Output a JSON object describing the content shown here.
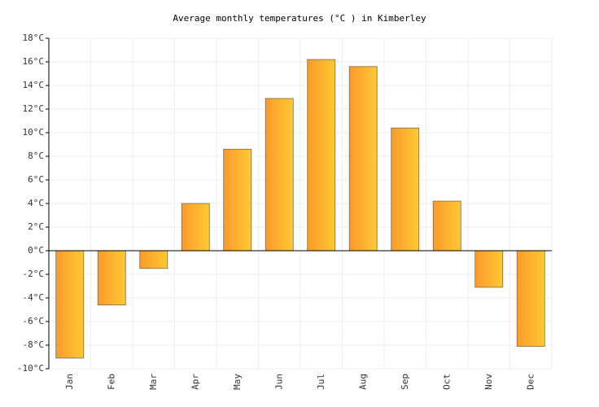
{
  "chart_data": {
    "type": "bar",
    "title": "Average monthly temperatures (°C ) in Kimberley",
    "categories": [
      "Jan",
      "Feb",
      "Mar",
      "Apr",
      "May",
      "Jun",
      "Jul",
      "Aug",
      "Sep",
      "Oct",
      "Nov",
      "Dec"
    ],
    "values": [
      -9.1,
      -4.6,
      -1.5,
      4.0,
      8.6,
      12.9,
      16.2,
      15.6,
      10.4,
      4.2,
      -3.1,
      -8.1
    ],
    "color": [
      "#fb9a2b",
      "#ffc933"
    ],
    "ylim": [
      -10,
      18
    ],
    "yticks": [
      {
        "value": -10,
        "label": "-10°C"
      },
      {
        "value": -8,
        "label": "-8°C"
      },
      {
        "value": -6,
        "label": "-6°C"
      },
      {
        "value": -4,
        "label": "-4°C"
      },
      {
        "value": -2,
        "label": "-2°C"
      },
      {
        "value": 0,
        "label": "0°C"
      },
      {
        "value": 2,
        "label": "2°C"
      },
      {
        "value": 4,
        "label": "4°C"
      },
      {
        "value": 6,
        "label": "6°C"
      },
      {
        "value": 8,
        "label": "8°C"
      },
      {
        "value": 10,
        "label": "10°C"
      },
      {
        "value": 12,
        "label": "12°C"
      },
      {
        "value": 14,
        "label": "14°C"
      },
      {
        "value": 16,
        "label": "16°C"
      },
      {
        "value": 18,
        "label": "18°C"
      }
    ],
    "grid": true
  }
}
